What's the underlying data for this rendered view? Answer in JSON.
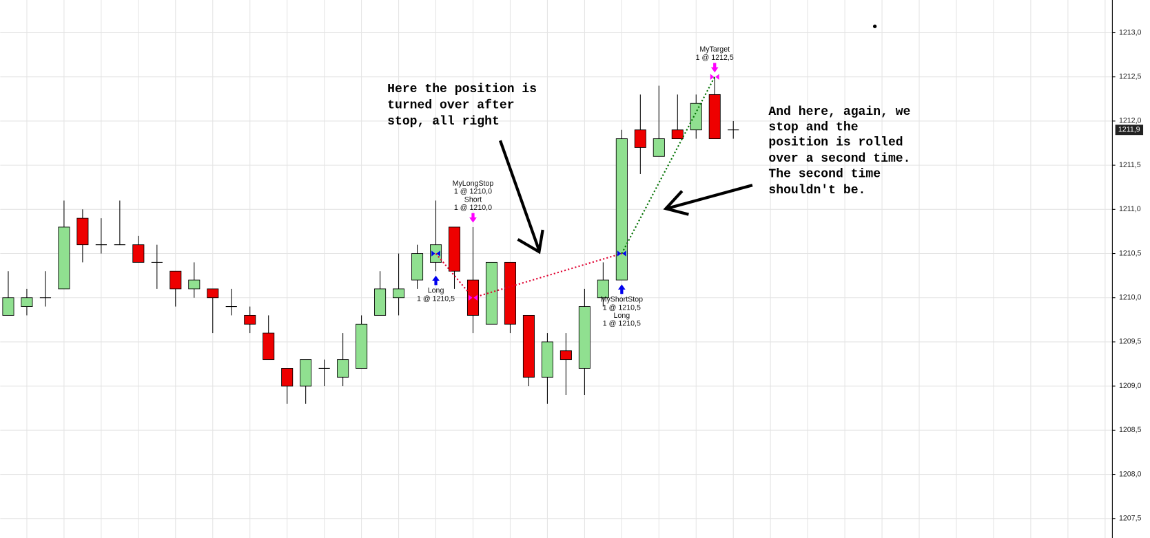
{
  "chart_data": {
    "type": "candlestick",
    "xlim": [
      -0.43,
      59.39
    ],
    "ylim": [
      1207.28,
      1213.37
    ],
    "yticks": [
      {
        "value": 1207.5,
        "label": "1207,5"
      },
      {
        "value": 1208.0,
        "label": "1208,0"
      },
      {
        "value": 1208.5,
        "label": "1208,5"
      },
      {
        "value": 1209.0,
        "label": "1209,0"
      },
      {
        "value": 1209.5,
        "label": "1209,5"
      },
      {
        "value": 1210.0,
        "label": "1210,0"
      },
      {
        "value": 1210.5,
        "label": "1210,5"
      },
      {
        "value": 1211.0,
        "label": "1211,0"
      },
      {
        "value": 1211.5,
        "label": "1211,5"
      },
      {
        "value": 1212.0,
        "label": "1212,0"
      },
      {
        "value": 1212.5,
        "label": "1212,5"
      },
      {
        "value": 1213.0,
        "label": "1213,0"
      }
    ],
    "grid": true,
    "up_color": "#90e090",
    "down_color": "#ee0000",
    "open": [
      1209.8,
      1209.9,
      1210.0,
      1210.1,
      1210.9,
      1210.6,
      1210.6,
      1210.6,
      1210.4,
      1210.3,
      1210.1,
      1210.1,
      1209.9,
      1209.8,
      1209.6,
      1209.2,
      1209.0,
      1209.2,
      1209.1,
      1209.2,
      1209.8,
      1210.0,
      1210.2,
      1210.4,
      1210.8,
      1210.2,
      1209.7,
      1210.4,
      1209.8,
      1209.1,
      1209.4,
      1209.2,
      1210.0,
      1210.2,
      1211.9,
      1211.6,
      1211.9,
      1211.9,
      1212.3,
      1211.9
    ],
    "high": [
      1210.3,
      1210.1,
      1210.3,
      1211.1,
      1211.0,
      1210.9,
      1211.1,
      1210.7,
      1210.6,
      1210.3,
      1210.4,
      1210.1,
      1210.1,
      1209.9,
      1209.8,
      1209.2,
      1209.3,
      1209.3,
      1209.6,
      1209.8,
      1210.3,
      1210.5,
      1210.6,
      1211.1,
      1210.8,
      1210.8,
      1210.4,
      1210.4,
      1209.8,
      1209.6,
      1209.6,
      1210.1,
      1210.4,
      1211.9,
      1212.3,
      1212.4,
      1212.3,
      1212.3,
      1212.5,
      1212.0
    ],
    "low": [
      1209.8,
      1209.8,
      1209.9,
      1210.1,
      1210.4,
      1210.5,
      1210.6,
      1210.4,
      1210.1,
      1209.9,
      1210.0,
      1209.6,
      1209.8,
      1209.6,
      1209.3,
      1208.8,
      1208.8,
      1209.0,
      1209.0,
      1209.2,
      1209.8,
      1209.8,
      1210.1,
      1210.3,
      1210.1,
      1209.6,
      1209.7,
      1209.6,
      1209.0,
      1208.8,
      1208.9,
      1208.9,
      1209.9,
      1210.2,
      1211.4,
      1211.6,
      1211.8,
      1211.8,
      1211.8,
      1211.8
    ],
    "close": [
      1210.0,
      1210.0,
      1210.0,
      1210.8,
      1210.6,
      1210.6,
      1210.6,
      1210.4,
      1210.4,
      1210.1,
      1210.2,
      1210.0,
      1209.9,
      1209.7,
      1209.3,
      1209.0,
      1209.3,
      1209.2,
      1209.3,
      1209.7,
      1210.1,
      1210.1,
      1210.5,
      1210.6,
      1210.3,
      1209.8,
      1210.4,
      1209.7,
      1209.1,
      1209.5,
      1209.3,
      1209.9,
      1210.2,
      1211.8,
      1211.7,
      1211.8,
      1211.8,
      1212.2,
      1211.8,
      1211.9
    ],
    "last_price": {
      "value": 1211.9,
      "label": "1211,9"
    },
    "trades": [
      {
        "index": 23,
        "price": 1210.5,
        "side": "buy",
        "labels": [
          "Long",
          "1 @ 1210,5"
        ]
      },
      {
        "index": 25,
        "price": 1210.0,
        "side": "sell",
        "labels": [
          "MyLongStop",
          "1 @ 1210,0",
          "Short",
          "1 @ 1210,0"
        ]
      },
      {
        "index": 33,
        "price": 1210.5,
        "side": "buy",
        "labels": [
          "MyShortStop",
          "1 @ 1210,5",
          "Long",
          "1 @ 1210,5"
        ]
      },
      {
        "index": 38,
        "price": 1212.5,
        "side": "sell",
        "labels": [
          "MyTarget",
          "1 @ 1212,5"
        ]
      }
    ],
    "connector_colors": [
      "#e00030",
      "#e00030",
      "#007000"
    ],
    "annotations": [
      [
        "Here the position is",
        "turned over after",
        "stop, all right"
      ],
      [
        "And here, again, we",
        "stop and the",
        "position is rolled",
        "over a second time.",
        "The second time",
        "shouldn't be."
      ]
    ]
  }
}
